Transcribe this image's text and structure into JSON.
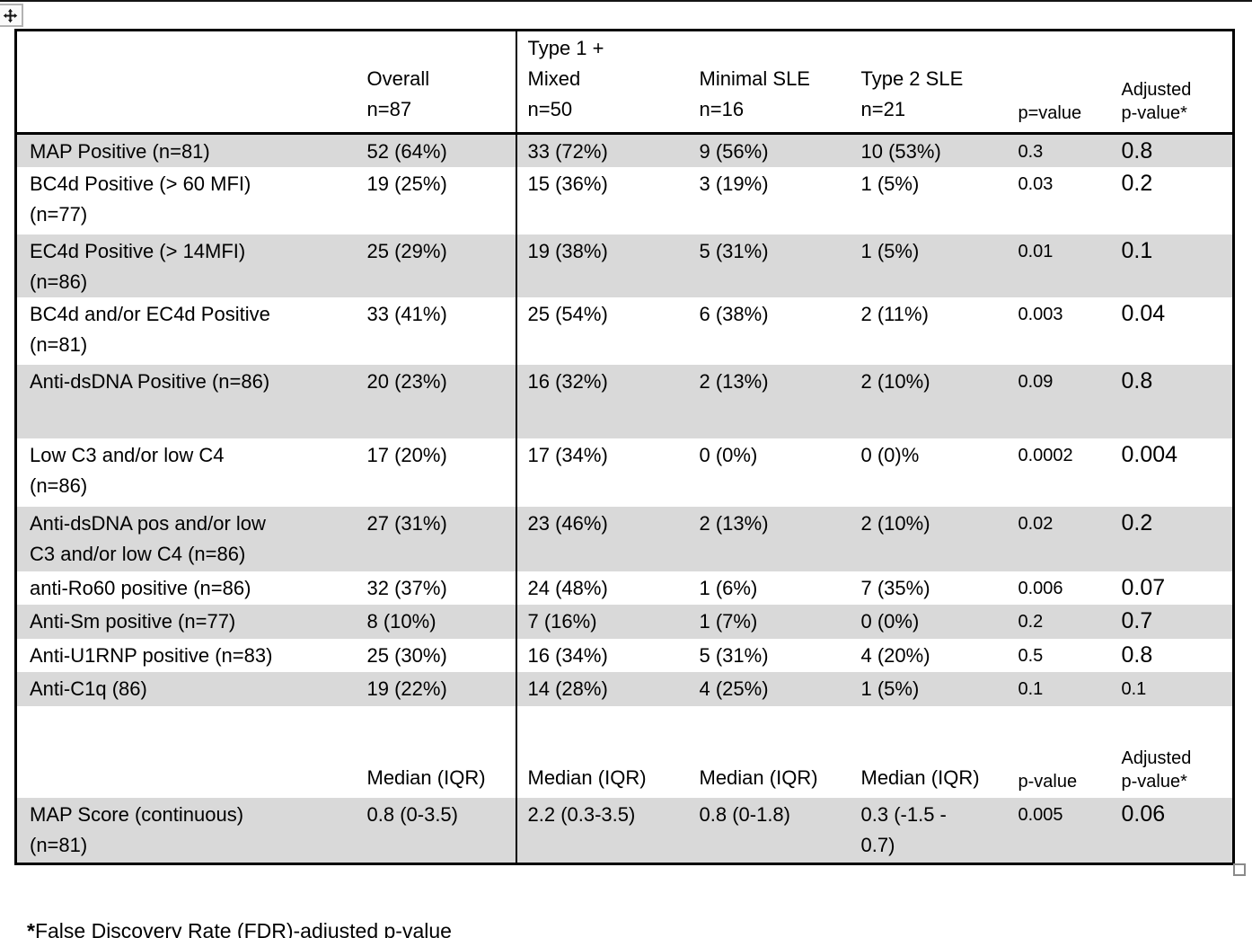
{
  "icons": {
    "move_handle": "four-way-move-arrow",
    "resize_handle": "resize-square"
  },
  "table": {
    "header": [
      "",
      "Overall\nn=87",
      "Type 1 +\nMixed\nn=50",
      "Minimal SLE\nn=16",
      "Type 2 SLE\nn=21",
      "p=value",
      "Adjusted\np-value*"
    ],
    "rows": [
      {
        "type": "data",
        "label": "MAP Positive (n=81)",
        "values": [
          "52 (64%)",
          "33 (72%)",
          "9 (56%)",
          "10 (53%)",
          "0.3",
          "0.8"
        ]
      },
      {
        "type": "data",
        "label": "BC4d Positive (> 60 MFI)\n(n=77)",
        "values": [
          "19 (25%)",
          "15 (36%)",
          "3 (19%)",
          "1 (5%)",
          "0.03",
          "0.2"
        ]
      },
      {
        "type": "data",
        "label": "EC4d Positive (> 14MFI)\n(n=86)",
        "values": [
          "25 (29%)",
          "19 (38%)",
          "5 (31%)",
          "1 (5%)",
          "0.01",
          "0.1"
        ]
      },
      {
        "type": "data",
        "label": "BC4d and/or EC4d Positive\n(n=81)",
        "values": [
          "33 (41%)",
          "25 (54%)",
          "6 (38%)",
          "2 (11%)",
          "0.003",
          "0.04"
        ]
      },
      {
        "type": "data",
        "label": "Anti-dsDNA Positive (n=86)",
        "values": [
          "20 (23%)",
          "16 (32%)",
          "2 (13%)",
          "2 (10%)",
          "0.09",
          "0.8"
        ]
      },
      {
        "type": "data",
        "label": "Low C3 and/or low C4\n(n=86)",
        "values": [
          "17 (20%)",
          "17 (34%)",
          "0 (0%)",
          "0 (0)%",
          "0.0002",
          "0.004"
        ]
      },
      {
        "type": "data",
        "label": "Anti-dsDNA pos and/or low\nC3 and/or low C4 (n=86)",
        "values": [
          "27 (31%)",
          "23 (46%)",
          "2 (13%)",
          "2 (10%)",
          "0.02",
          "0.2"
        ]
      },
      {
        "type": "data",
        "label": "anti-Ro60 positive (n=86)",
        "values": [
          "32 (37%)",
          "24 (48%)",
          "1 (6%)",
          "7 (35%)",
          "0.006",
          "0.07"
        ]
      },
      {
        "type": "data",
        "label": "Anti-Sm positive (n=77)",
        "values": [
          "8 (10%)",
          "7 (16%)",
          "1 (7%)",
          "0 (0%)",
          "0.2",
          "0.7"
        ]
      },
      {
        "type": "data",
        "label": "Anti-U1RNP positive (n=83)",
        "values": [
          "25 (30%)",
          "16 (34%)",
          "5 (31%)",
          "4 (20%)",
          "0.5",
          "0.8"
        ]
      },
      {
        "type": "data",
        "label": "Anti-C1q (86)",
        "values": [
          "19 (22%)",
          "14 (28%)",
          "4 (25%)",
          "1 (5%)",
          "0.1",
          "0.1"
        ]
      },
      {
        "type": "subheader",
        "label": "",
        "values": [
          "Median (IQR)",
          "Median (IQR)",
          "Median (IQR)",
          "Median (IQR)",
          "p-value",
          "Adjusted\np-value*"
        ]
      },
      {
        "type": "data",
        "label": "MAP Score (continuous)\n(n=81)",
        "values": [
          "0.8 (0-3.5)",
          "2.2 (0.3-3.5)",
          "0.8 (0-1.8)",
          "0.3 (-1.5 -\n0.7)",
          "0.005",
          "0.06"
        ]
      }
    ]
  },
  "footnote": {
    "marker": "*",
    "text": "False Discovery Rate (FDR)-adjusted p-value"
  }
}
